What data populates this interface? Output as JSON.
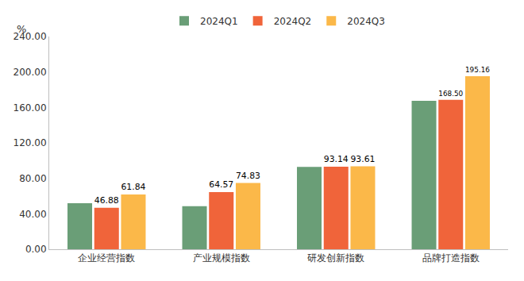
{
  "chart_data": {
    "type": "bar",
    "ylabel": "%",
    "categories": [
      "企业经营指数",
      "产业规模指数",
      "研发创新指数",
      "品牌打造指数"
    ],
    "series": [
      {
        "name": "2024Q1",
        "color": "#6a9e77",
        "values": [
          52.0,
          48.5,
          93.0,
          167.5
        ],
        "data_labels": false
      },
      {
        "name": "2024Q2",
        "color": "#f0643a",
        "values": [
          46.88,
          64.57,
          93.14,
          168.5
        ],
        "value_labels": [
          "46.88",
          "64.57",
          "93.14",
          "168.50"
        ],
        "data_labels": true
      },
      {
        "name": "2024Q3",
        "color": "#fbb849",
        "values": [
          61.84,
          74.83,
          93.61,
          195.16
        ],
        "value_labels": [
          "61.84",
          "74.83",
          "93.61",
          "195.16"
        ],
        "data_labels": true
      }
    ],
    "ylim": [
      0,
      240
    ],
    "yticks": [
      {
        "value": 0,
        "label": "0.00"
      },
      {
        "value": 40,
        "label": "40.00"
      },
      {
        "value": 80,
        "label": "80.00"
      },
      {
        "value": 120,
        "label": "120.00"
      },
      {
        "value": 160,
        "label": "160.00"
      },
      {
        "value": 200,
        "label": "200.00"
      },
      {
        "value": 240,
        "label": "240.00"
      }
    ],
    "grid": false,
    "legend": "top"
  }
}
